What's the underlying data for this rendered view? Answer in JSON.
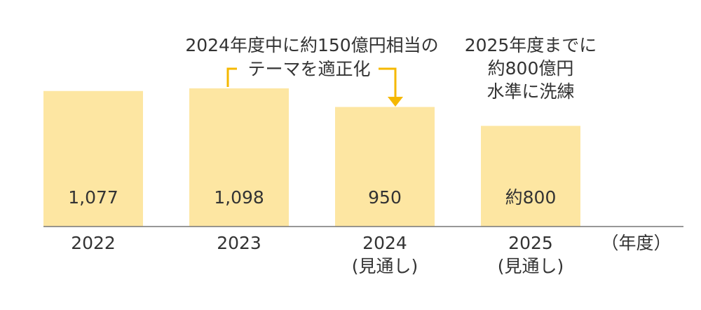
{
  "chart_data": {
    "type": "bar",
    "categories": [
      "2022",
      "2023",
      "2024\n(見通し)",
      "2025\n(見通し)"
    ],
    "values": [
      1077,
      1098,
      950,
      800
    ],
    "value_labels": [
      "1,077",
      "1,098",
      "950",
      "約800"
    ],
    "color": "#fde6a2",
    "ylim": [
      0,
      1800
    ],
    "x_label": "（年度）",
    "annotations": [
      "2024年度中に約150億円相当の",
      "テーマを適正化",
      "2025年度までに\n約800億円\n水準に洗練"
    ]
  }
}
